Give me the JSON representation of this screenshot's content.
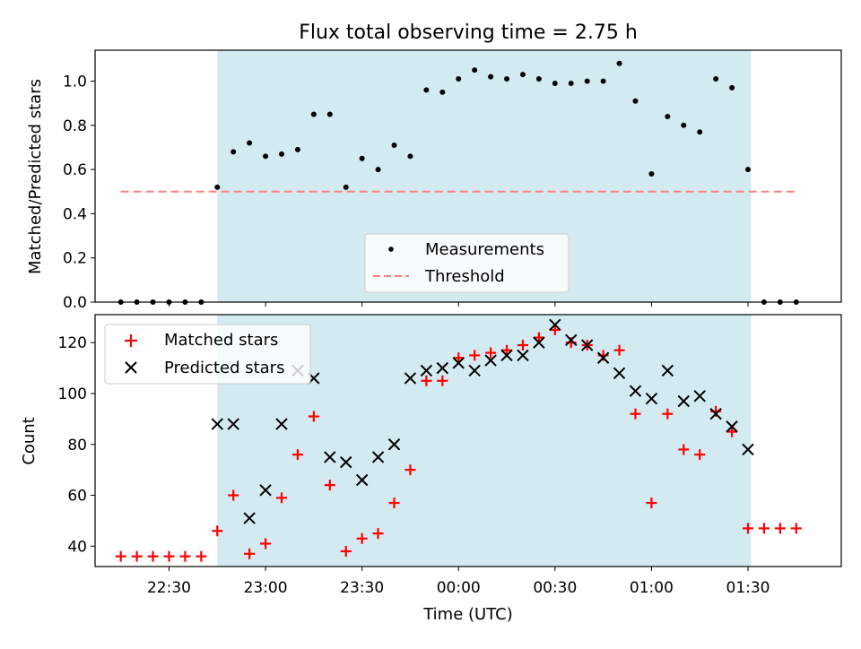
{
  "chart_data": [
    {
      "type": "scatter",
      "title": "Flux total observing time = 2.75 h",
      "xlabel": "",
      "ylabel": "Matched/Predicted stars",
      "ylim": [
        0,
        1.14
      ],
      "xlim": [
        "22:07",
        "01:59"
      ],
      "yticks": [
        "0.0",
        "0.2",
        "0.4",
        "0.6",
        "0.8",
        "1.0"
      ],
      "shaded_region": {
        "start": "22:45",
        "end": "01:31",
        "color": "#d3eaf1"
      },
      "legend_position": "lower-center",
      "series": [
        {
          "name": "Measurements",
          "marker": "dot",
          "color": "#000000",
          "x": [
            "22:15",
            "22:20",
            "22:25",
            "22:30",
            "22:35",
            "22:40",
            "22:45",
            "22:50",
            "22:55",
            "23:00",
            "23:05",
            "23:10",
            "23:15",
            "23:20",
            "23:25",
            "23:30",
            "23:35",
            "23:40",
            "23:45",
            "23:50",
            "23:55",
            "00:00",
            "00:05",
            "00:10",
            "00:15",
            "00:20",
            "00:25",
            "00:30",
            "00:35",
            "00:40",
            "00:45",
            "00:50",
            "00:55",
            "01:00",
            "01:05",
            "01:10",
            "01:15",
            "01:20",
            "01:25",
            "01:30",
            "01:35",
            "01:40",
            "01:45"
          ],
          "y": [
            0,
            0,
            0,
            0,
            0,
            0,
            0.52,
            0.68,
            0.72,
            0.66,
            0.67,
            0.69,
            0.85,
            0.85,
            0.52,
            0.65,
            0.6,
            0.71,
            0.66,
            0.96,
            0.95,
            1.01,
            1.05,
            1.02,
            1.01,
            1.03,
            1.01,
            0.99,
            0.99,
            1.0,
            1.0,
            1.08,
            0.91,
            0.58,
            0.84,
            0.8,
            0.77,
            1.01,
            0.97,
            0.6,
            0,
            0,
            0
          ]
        },
        {
          "name": "Threshold",
          "style": "dashed",
          "color": "#ff7f7f",
          "x": [
            "22:15",
            "01:45"
          ],
          "y": [
            0.5,
            0.5
          ]
        }
      ]
    },
    {
      "type": "scatter",
      "title": "",
      "xlabel": "Time (UTC)",
      "ylabel": "Count",
      "ylim": [
        32,
        131
      ],
      "xlim": [
        "22:07",
        "01:59"
      ],
      "yticks": [
        "40",
        "60",
        "80",
        "100",
        "120"
      ],
      "xticks": [
        "22:30",
        "23:00",
        "23:30",
        "00:00",
        "00:30",
        "01:00",
        "01:30"
      ],
      "shaded_region": {
        "start": "22:45",
        "end": "01:31",
        "color": "#d3eaf1"
      },
      "legend_position": "upper-left",
      "series": [
        {
          "name": "Matched stars",
          "marker": "plus",
          "color": "#ff0000",
          "x": [
            "22:15",
            "22:20",
            "22:25",
            "22:30",
            "22:35",
            "22:40",
            "22:45",
            "22:50",
            "22:55",
            "23:00",
            "23:05",
            "23:10",
            "23:15",
            "23:20",
            "23:25",
            "23:30",
            "23:35",
            "23:40",
            "23:45",
            "23:50",
            "23:55",
            "00:00",
            "00:05",
            "00:10",
            "00:15",
            "00:20",
            "00:25",
            "00:30",
            "00:35",
            "00:40",
            "00:45",
            "00:50",
            "00:55",
            "01:00",
            "01:05",
            "01:10",
            "01:15",
            "01:20",
            "01:25",
            "01:30",
            "01:35",
            "01:40",
            "01:45"
          ],
          "y": [
            36,
            36,
            36,
            36,
            36,
            36,
            46,
            60,
            37,
            41,
            59,
            76,
            91,
            64,
            38,
            43,
            45,
            57,
            70,
            105,
            105,
            114,
            115,
            116,
            117,
            119,
            122,
            125,
            120,
            119,
            115,
            117,
            92,
            57,
            92,
            78,
            76,
            93,
            85,
            47,
            47,
            47,
            47
          ]
        },
        {
          "name": "Predicted stars",
          "marker": "x",
          "color": "#000000",
          "x": [
            "22:45",
            "22:50",
            "22:55",
            "23:00",
            "23:05",
            "23:10",
            "23:15",
            "23:20",
            "23:25",
            "23:30",
            "23:35",
            "23:40",
            "23:45",
            "23:50",
            "23:55",
            "00:00",
            "00:05",
            "00:10",
            "00:15",
            "00:20",
            "00:25",
            "00:30",
            "00:35",
            "00:40",
            "00:45",
            "00:50",
            "00:55",
            "01:00",
            "01:05",
            "01:10",
            "01:15",
            "01:20",
            "01:25",
            "01:30"
          ],
          "y": [
            88,
            88,
            51,
            62,
            88,
            109,
            106,
            75,
            73,
            66,
            75,
            80,
            106,
            109,
            110,
            112,
            109,
            113,
            115,
            115,
            120,
            127,
            121,
            119,
            114,
            108,
            101,
            98,
            109,
            97,
            99,
            92,
            87,
            78
          ]
        }
      ]
    }
  ]
}
